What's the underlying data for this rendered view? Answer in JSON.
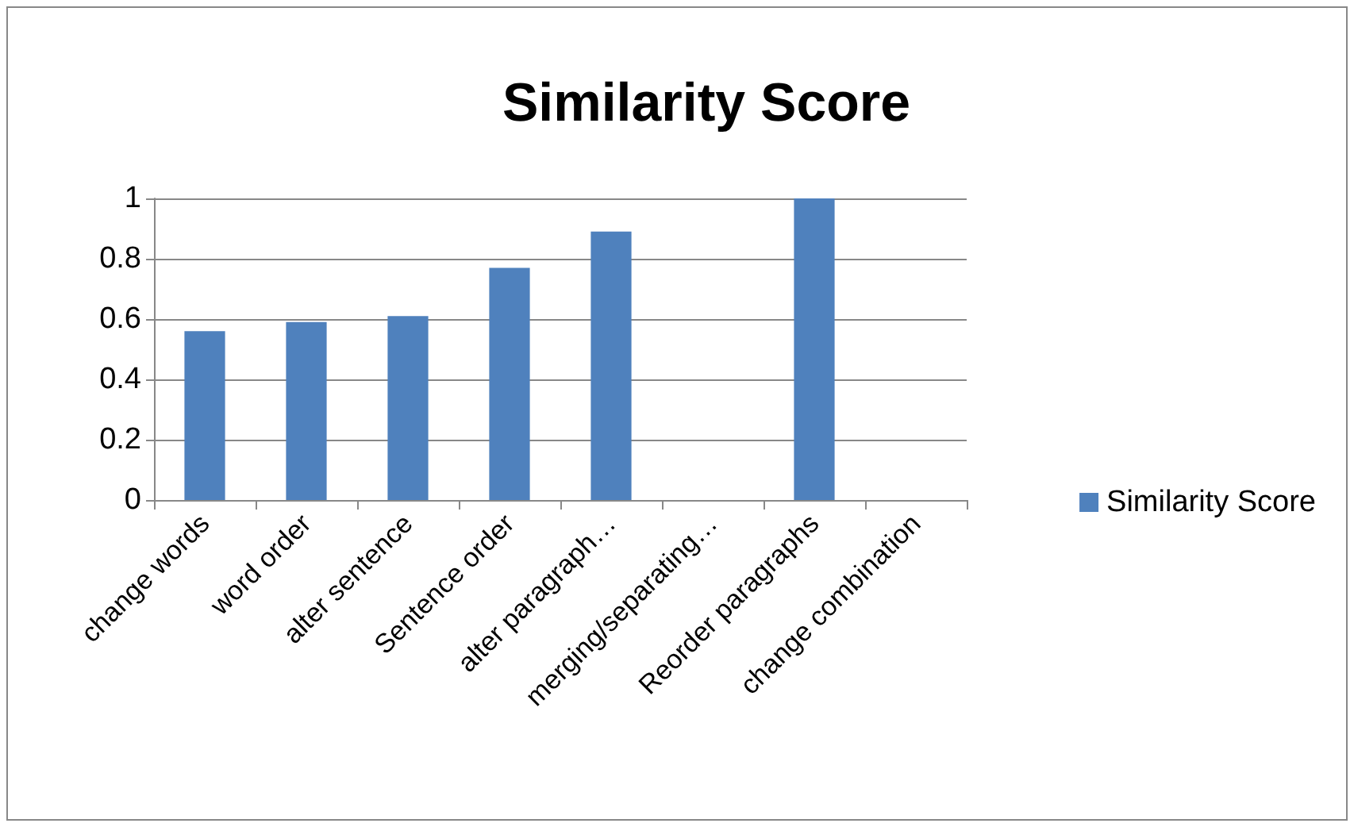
{
  "chart_data": {
    "type": "bar",
    "title": "Similarity Score",
    "categories": [
      "change words",
      "word order",
      "alter sentence",
      "Sentence order",
      "alter paragraph…",
      "merging/separating…",
      "Reorder paragraphs",
      "change combination"
    ],
    "series": [
      {
        "name": "Similarity Score",
        "color": "#4f81bd",
        "values": [
          0.56,
          0.59,
          0.61,
          0.77,
          0.89,
          null,
          1.0,
          null
        ]
      }
    ],
    "ylim": [
      0,
      1
    ],
    "yticks": [
      0,
      0.2,
      0.4,
      0.6,
      0.8,
      1
    ],
    "grid": "y",
    "legend": "right"
  }
}
